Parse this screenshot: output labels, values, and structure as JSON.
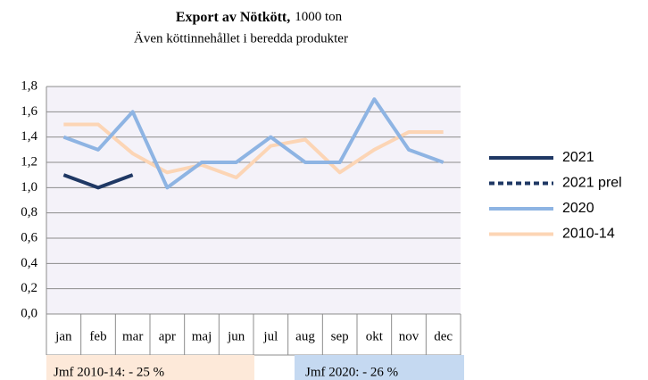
{
  "chart_data": {
    "type": "line",
    "title": "Export av Nötkött,",
    "unit": "1000 ton",
    "subtitle": "Även köttinnehållet i beredda produkter",
    "categories": [
      "jan",
      "feb",
      "mar",
      "apr",
      "maj",
      "jun",
      "jul",
      "aug",
      "sep",
      "okt",
      "nov",
      "dec"
    ],
    "series": [
      {
        "name": "2021",
        "color": "#1f3864",
        "dashed": false,
        "values": [
          1.1,
          1.0,
          1.1,
          null,
          null,
          null,
          null,
          null,
          null,
          null,
          null,
          null
        ]
      },
      {
        "name": "2021 prel",
        "color": "#1f3864",
        "dashed": true,
        "values": [
          null,
          null,
          null,
          null,
          null,
          null,
          null,
          null,
          null,
          null,
          null,
          null
        ]
      },
      {
        "name": "2020",
        "color": "#8eb4e3",
        "dashed": false,
        "values": [
          1.4,
          1.3,
          1.6,
          1.0,
          1.2,
          1.2,
          1.4,
          1.2,
          1.2,
          1.7,
          1.3,
          1.2
        ]
      },
      {
        "name": "2010-14",
        "color": "#fcd5b5",
        "dashed": false,
        "values": [
          1.5,
          1.5,
          1.27,
          1.12,
          1.18,
          1.08,
          1.33,
          1.38,
          1.12,
          1.3,
          1.44,
          1.44
        ]
      }
    ],
    "ylim": [
      0,
      1.8
    ],
    "yticks": [
      {
        "value": 0,
        "label": "0,0"
      },
      {
        "value": 0.2,
        "label": "0,2"
      },
      {
        "value": 0.4,
        "label": "0,4"
      },
      {
        "value": 0.6,
        "label": "0,6"
      },
      {
        "value": 0.8,
        "label": "0,8"
      },
      {
        "value": 1.0,
        "label": "1,0"
      },
      {
        "value": 1.2,
        "label": "1,2"
      },
      {
        "value": 1.4,
        "label": "1,4"
      },
      {
        "value": 1.6,
        "label": "1,6"
      },
      {
        "value": 1.8,
        "label": "1,8"
      }
    ],
    "grid": true,
    "legend": "right",
    "annotations": [
      {
        "text": "Jmf 2010-14: - 25 %",
        "color": "#fde9d9"
      },
      {
        "text": "Jmf 2020: - 26 %",
        "color": "#c5d9f1"
      }
    ]
  }
}
